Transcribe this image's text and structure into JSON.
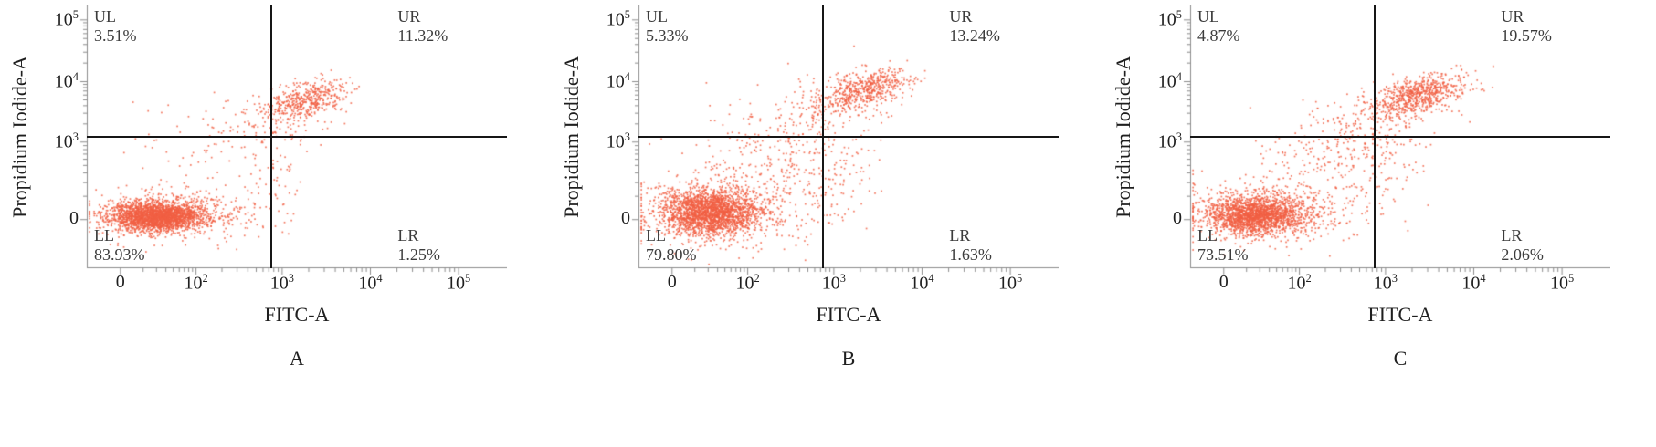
{
  "figure": {
    "type": "flow-cytometry-quadrant-scatter-figure",
    "background": "#ffffff",
    "panel_labels": [
      "A",
      "B",
      "C"
    ]
  },
  "style": {
    "axis_color": "#8c8c8c",
    "tick_text_color": "#1f1f1f",
    "gate_line_color": "#161616",
    "quadrant_text_color": "#3c3c3c",
    "point_color": "#f15f43"
  },
  "chart_data": [
    {
      "type": "scatter",
      "panel_label": "A",
      "xlabel": "FITC-A",
      "ylabel": "Propidium Iodide-A",
      "x_axis": {
        "scale": "log-biexponential",
        "ticks": [
          {
            "label": "0",
            "f": 0.08
          },
          {
            "label": "10^2",
            "f": 0.26
          },
          {
            "label": "10^3",
            "f": 0.465
          },
          {
            "label": "10^4",
            "f": 0.675
          },
          {
            "label": "10^5",
            "f": 0.885
          }
        ]
      },
      "y_axis": {
        "scale": "log-biexponential",
        "ticks": [
          {
            "label": "0",
            "f": 0.185
          },
          {
            "label": "10^3",
            "f": 0.48
          },
          {
            "label": "10^4",
            "f": 0.71
          },
          {
            "label": "10^5",
            "f": 0.945
          }
        ]
      },
      "gate": {
        "vx": 0.44,
        "hy": 0.5,
        "x_value": "1e3",
        "y_value": "1.5e3"
      },
      "quadrants": {
        "UL": {
          "label": "UL",
          "pct": "3.51%"
        },
        "UR": {
          "label": "UR",
          "pct": "11.32%"
        },
        "LL": {
          "label": "LL",
          "pct": "83.93%"
        },
        "LR": {
          "label": "LR",
          "pct": "1.25%"
        }
      },
      "seed": 101,
      "clusters": [
        {
          "cx": 0.165,
          "cy": 0.8,
          "sx": 0.052,
          "sy": 0.028,
          "n": 2200
        },
        {
          "cx": 0.19,
          "cy": 0.79,
          "sx": 0.1,
          "sy": 0.05,
          "n": 420
        },
        {
          "cx": 0.31,
          "cy": 0.78,
          "sx": 0.06,
          "sy": 0.04,
          "n": 100
        },
        {
          "cx": 0.52,
          "cy": 0.36,
          "sx": 0.05,
          "sy": 0.032,
          "n": 450,
          "t": 0.35
        },
        {
          "cx": 0.44,
          "cy": 0.44,
          "sx": 0.08,
          "sy": 0.06,
          "n": 110,
          "t": 0.5
        },
        {
          "cx": 0.27,
          "cy": 0.54,
          "sx": 0.1,
          "sy": 0.09,
          "n": 55
        },
        {
          "cx": 0.46,
          "cy": 0.63,
          "sx": 0.035,
          "sy": 0.09,
          "n": 40
        }
      ]
    },
    {
      "type": "scatter",
      "panel_label": "B",
      "xlabel": "FITC-A",
      "ylabel": "Propidium Iodide-A",
      "x_axis": {
        "scale": "log-biexponential",
        "ticks": [
          {
            "label": "0",
            "f": 0.08
          },
          {
            "label": "10^2",
            "f": 0.26
          },
          {
            "label": "10^3",
            "f": 0.465
          },
          {
            "label": "10^4",
            "f": 0.675
          },
          {
            "label": "10^5",
            "f": 0.885
          }
        ]
      },
      "y_axis": {
        "scale": "log-biexponential",
        "ticks": [
          {
            "label": "0",
            "f": 0.185
          },
          {
            "label": "10^3",
            "f": 0.48
          },
          {
            "label": "10^4",
            "f": 0.71
          },
          {
            "label": "10^5",
            "f": 0.945
          }
        ]
      },
      "gate": {
        "vx": 0.44,
        "hy": 0.5,
        "x_value": "1e3",
        "y_value": "1.5e3"
      },
      "quadrants": {
        "UL": {
          "label": "UL",
          "pct": "5.33%"
        },
        "UR": {
          "label": "UR",
          "pct": "13.24%"
        },
        "LL": {
          "label": "LL",
          "pct": "79.80%"
        },
        "LR": {
          "label": "LR",
          "pct": "1.63%"
        }
      },
      "seed": 202,
      "clusters": [
        {
          "cx": 0.165,
          "cy": 0.785,
          "sx": 0.058,
          "sy": 0.042,
          "n": 2000
        },
        {
          "cx": 0.2,
          "cy": 0.775,
          "sx": 0.115,
          "sy": 0.075,
          "n": 520
        },
        {
          "cx": 0.34,
          "cy": 0.56,
          "sx": 0.1,
          "sy": 0.12,
          "n": 260,
          "t": 0.3
        },
        {
          "cx": 0.54,
          "cy": 0.315,
          "sx": 0.052,
          "sy": 0.034,
          "n": 500,
          "t": 0.35
        },
        {
          "cx": 0.44,
          "cy": 0.4,
          "sx": 0.09,
          "sy": 0.065,
          "n": 150,
          "t": 0.5
        },
        {
          "cx": 0.47,
          "cy": 0.65,
          "sx": 0.05,
          "sy": 0.1,
          "n": 70
        }
      ]
    },
    {
      "type": "scatter",
      "panel_label": "C",
      "xlabel": "FITC-A",
      "ylabel": "Propidium Iodide-A",
      "x_axis": {
        "scale": "log-biexponential",
        "ticks": [
          {
            "label": "0",
            "f": 0.08
          },
          {
            "label": "10^2",
            "f": 0.26
          },
          {
            "label": "10^3",
            "f": 0.465
          },
          {
            "label": "10^4",
            "f": 0.675
          },
          {
            "label": "10^5",
            "f": 0.885
          }
        ]
      },
      "y_axis": {
        "scale": "log-biexponential",
        "ticks": [
          {
            "label": "0",
            "f": 0.185
          },
          {
            "label": "10^3",
            "f": 0.48
          },
          {
            "label": "10^4",
            "f": 0.71
          },
          {
            "label": "10^5",
            "f": 0.945
          }
        ]
      },
      "gate": {
        "vx": 0.44,
        "hy": 0.5,
        "x_value": "1e3",
        "y_value": "1.5e3"
      },
      "quadrants": {
        "UL": {
          "label": "UL",
          "pct": "4.87%"
        },
        "UR": {
          "label": "UR",
          "pct": "19.57%"
        },
        "LL": {
          "label": "LL",
          "pct": "73.51%"
        },
        "LR": {
          "label": "LR",
          "pct": "2.06%"
        }
      },
      "seed": 303,
      "clusters": [
        {
          "cx": 0.155,
          "cy": 0.795,
          "sx": 0.058,
          "sy": 0.036,
          "n": 1850
        },
        {
          "cx": 0.19,
          "cy": 0.785,
          "sx": 0.11,
          "sy": 0.065,
          "n": 430
        },
        {
          "cx": 0.33,
          "cy": 0.57,
          "sx": 0.1,
          "sy": 0.11,
          "n": 200,
          "t": 0.3
        },
        {
          "cx": 0.54,
          "cy": 0.34,
          "sx": 0.055,
          "sy": 0.034,
          "n": 650,
          "t": 0.35
        },
        {
          "cx": 0.45,
          "cy": 0.43,
          "sx": 0.09,
          "sy": 0.065,
          "n": 170,
          "t": 0.5
        },
        {
          "cx": 0.47,
          "cy": 0.64,
          "sx": 0.05,
          "sy": 0.1,
          "n": 60
        }
      ]
    }
  ]
}
